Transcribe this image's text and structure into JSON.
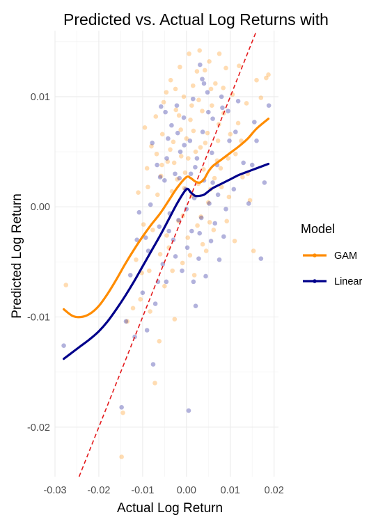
{
  "chart_data": {
    "type": "scatter",
    "title": "Predicted vs. Actual Log Returns with",
    "xlabel": "Actual Log Return",
    "ylabel": "Predicted Log Return",
    "xlim": [
      -0.03,
      0.021
    ],
    "ylim": [
      -0.0245,
      0.016
    ],
    "x_ticks": [
      -0.03,
      -0.02,
      -0.01,
      0.0,
      0.01,
      0.02
    ],
    "x_tick_labels": [
      "-0.03",
      "-0.02",
      "-0.01",
      "0.00",
      "0.01",
      "0.02"
    ],
    "y_ticks": [
      -0.02,
      -0.01,
      0.0,
      0.01
    ],
    "y_tick_labels": [
      "-0.02",
      "-0.01",
      "0.00",
      "0.01"
    ],
    "grid": true,
    "legend": {
      "title": "Model",
      "position": "right"
    },
    "reference_line": {
      "style": "dashed",
      "color": "#e41a1c",
      "slope": 1,
      "intercept": 0
    },
    "series": [
      {
        "name": "GAM",
        "color": "#ff8c00",
        "points": [
          [
            -0.0275,
            -0.0071
          ],
          [
            -0.0148,
            -0.0227
          ],
          [
            -0.0145,
            -0.0187
          ],
          [
            -0.0135,
            -0.0104
          ],
          [
            -0.0122,
            -0.0092
          ],
          [
            -0.0115,
            -0.0048
          ],
          [
            -0.0105,
            -0.0084
          ],
          [
            -0.0098,
            -0.0016
          ],
          [
            -0.0095,
            0.0072
          ],
          [
            -0.009,
            0.0035
          ],
          [
            -0.0085,
            -0.0058
          ],
          [
            -0.008,
            0.0055
          ],
          [
            -0.0077,
            -0.0021
          ],
          [
            -0.007,
            0.0082
          ],
          [
            -0.0066,
            0.0011
          ],
          [
            -0.0062,
            -0.0122
          ],
          [
            -0.0058,
            0.0028
          ],
          [
            -0.0055,
            0.0066
          ],
          [
            -0.005,
            -0.0072
          ],
          [
            -0.0046,
            0.0104
          ],
          [
            -0.0043,
            0.0041
          ],
          [
            -0.004,
            -0.0037
          ],
          [
            -0.0036,
            0.0115
          ],
          [
            -0.0033,
            0.0014
          ],
          [
            -0.003,
            0.0059
          ],
          [
            -0.0027,
            -0.0102
          ],
          [
            -0.0024,
            0.0088
          ],
          [
            -0.0021,
            0.0025
          ],
          [
            -0.0018,
            -0.0013
          ],
          [
            -0.0015,
            0.0127
          ],
          [
            -0.0012,
            0.0046
          ],
          [
            -0.0009,
            -0.0051
          ],
          [
            -0.0006,
            0.01
          ],
          [
            -0.0003,
            0.0031
          ],
          [
            0.0,
            0.0062
          ],
          [
            0.0003,
            -0.0028
          ],
          [
            0.0006,
            0.0139
          ],
          [
            0.0009,
            0.0079
          ],
          [
            0.0012,
            0.001
          ],
          [
            0.0015,
            0.011
          ],
          [
            0.0018,
            -0.0062
          ],
          [
            0.0021,
            0.005
          ],
          [
            0.0024,
            0.0123
          ],
          [
            0.0027,
            0.0021
          ],
          [
            0.003,
            0.0142
          ],
          [
            0.0033,
            -0.0009
          ],
          [
            0.0036,
            0.0087
          ],
          [
            0.0039,
            0.0034
          ],
          [
            0.0042,
            0.0124
          ],
          [
            0.0045,
            -0.004
          ],
          [
            0.0048,
            0.0067
          ],
          [
            0.0052,
            0.0132
          ],
          [
            0.0055,
            0.0016
          ],
          [
            0.0058,
            0.0092
          ],
          [
            0.0062,
            -0.0021
          ],
          [
            0.0066,
            0.0112
          ],
          [
            0.007,
            0.0042
          ],
          [
            0.0075,
            0.0139
          ],
          [
            0.008,
            0.0018
          ],
          [
            0.0085,
            0.0085
          ],
          [
            0.009,
            0.0126
          ],
          [
            0.0097,
            0.0009
          ],
          [
            0.0105,
            0.0102
          ],
          [
            0.0112,
            0.0048
          ],
          [
            0.012,
            0.0128
          ],
          [
            0.0128,
            0.0027
          ],
          [
            0.0137,
            0.0094
          ],
          [
            0.0145,
            0.0006
          ],
          [
            0.0153,
            -0.004
          ],
          [
            0.016,
            0.0115
          ],
          [
            0.017,
            0.0099
          ],
          [
            0.0182,
            0.0117
          ],
          [
            0.0187,
            0.012
          ],
          [
            -0.011,
            0.0013
          ],
          [
            -0.0072,
            -0.016
          ],
          [
            -0.0052,
            0.0095
          ],
          [
            -0.0032,
            -0.0058
          ],
          [
            -0.0013,
            0.007
          ],
          [
            0.0008,
            -0.0044
          ],
          [
            0.0028,
            0.0097
          ],
          [
            0.005,
            0.0004
          ],
          [
            0.0072,
            0.006
          ],
          [
            0.0092,
            -0.0013
          ],
          [
            0.0118,
            0.0076
          ],
          [
            0.014,
            0.003
          ],
          [
            -0.0088,
            0.0018
          ],
          [
            -0.006,
            -0.0043
          ],
          [
            -0.0037,
            0.0052
          ],
          [
            -0.0017,
            0.0083
          ],
          [
            0.0004,
            0.0044
          ],
          [
            0.0025,
            -0.0017
          ],
          [
            0.0043,
            0.0058
          ],
          [
            0.0064,
            0.0026
          ],
          [
            0.0084,
            0.0108
          ],
          [
            0.011,
            -0.0031
          ],
          [
            -0.0102,
            -0.006
          ],
          [
            -0.0068,
            0.0048
          ],
          [
            -0.0045,
            -0.0026
          ],
          [
            -0.0025,
            0.0107
          ],
          [
            -0.0005,
            0.0017
          ],
          [
            0.0016,
            0.0069
          ],
          [
            0.0037,
            -0.0034
          ],
          [
            0.0056,
            0.0107
          ],
          [
            0.0078,
            0.0035
          ],
          [
            0.01,
            0.0066
          ],
          [
            -0.0083,
            -0.0095
          ],
          [
            -0.0056,
            0.0038
          ],
          [
            -0.0028,
            0.004
          ],
          [
            -0.0008,
            -0.0008
          ],
          [
            0.0012,
            0.0092
          ],
          [
            0.0032,
            0.0054
          ],
          [
            0.0053,
            -0.0014
          ],
          [
            0.0074,
            0.0075
          ],
          [
            0.0095,
            0.0044
          ],
          [
            0.0125,
            0.006
          ]
        ]
      },
      {
        "name": "Linear",
        "color": "#00008b",
        "points": [
          [
            -0.028,
            -0.0126
          ],
          [
            -0.0148,
            -0.0182
          ],
          [
            -0.0138,
            -0.0104
          ],
          [
            -0.0128,
            -0.0062
          ],
          [
            -0.0118,
            -0.0118
          ],
          [
            -0.0108,
            -0.0005
          ],
          [
            -0.01,
            -0.0078
          ],
          [
            -0.0093,
            -0.0028
          ],
          [
            -0.0087,
            -0.004
          ],
          [
            -0.0082,
            0.0002
          ],
          [
            -0.0076,
            -0.0143
          ],
          [
            -0.0071,
            -0.0088
          ],
          [
            -0.0067,
            0.0038
          ],
          [
            -0.0062,
            -0.0018
          ],
          [
            -0.0058,
            0.0091
          ],
          [
            -0.0054,
            -0.0052
          ],
          [
            -0.005,
            0.0024
          ],
          [
            -0.0046,
            -0.0068
          ],
          [
            -0.0042,
            0.0062
          ],
          [
            -0.0038,
            -0.0006
          ],
          [
            -0.0034,
            0.0074
          ],
          [
            -0.003,
            -0.003
          ],
          [
            -0.0026,
            0.003
          ],
          [
            -0.0022,
            0.0092
          ],
          [
            -0.0018,
            -0.0012
          ],
          [
            -0.0014,
            0.005
          ],
          [
            -0.001,
            -0.0058
          ],
          [
            -0.0006,
            0.0081
          ],
          [
            -0.0002,
            0.0016
          ],
          [
            0.0002,
            -0.0037
          ],
          [
            0.0005,
            -0.0185
          ],
          [
            0.0008,
            0.006
          ],
          [
            0.0012,
            -0.0022
          ],
          [
            0.0015,
            0.0098
          ],
          [
            0.0018,
            0.0008
          ],
          [
            0.0021,
            -0.009
          ],
          [
            0.0024,
            0.0044
          ],
          [
            0.0028,
            -0.0047
          ],
          [
            0.0031,
            0.0129
          ],
          [
            0.0034,
            -0.001
          ],
          [
            0.0037,
            0.0068
          ],
          [
            0.004,
            0.0024
          ],
          [
            0.0044,
            -0.0063
          ],
          [
            0.0048,
            0.0104
          ],
          [
            0.0052,
            0.0003
          ],
          [
            0.0056,
            -0.0031
          ],
          [
            0.006,
            0.008
          ],
          [
            0.0065,
            -0.0015
          ],
          [
            0.007,
            0.0038
          ],
          [
            0.0075,
            -0.0048
          ],
          [
            0.0082,
            0.009
          ],
          [
            0.009,
            -0.0002
          ],
          [
            0.0098,
            0.006
          ],
          [
            0.0108,
            0.0016
          ],
          [
            0.0118,
            0.0096
          ],
          [
            0.013,
            0.004
          ],
          [
            0.0142,
            0.0003
          ],
          [
            0.0155,
            0.0077
          ],
          [
            0.017,
            -0.0047
          ],
          [
            0.0178,
            0.0022
          ],
          [
            0.0188,
            0.0092
          ],
          [
            -0.009,
            -0.0112
          ],
          [
            -0.006,
            0.0027
          ],
          [
            -0.004,
            -0.0022
          ],
          [
            -0.002,
            0.0067
          ],
          [
            0.0,
            -0.0002
          ],
          [
            0.002,
            0.0036
          ],
          [
            0.004,
            0.0112
          ],
          [
            0.006,
            0.0022
          ],
          [
            0.008,
            0.01
          ],
          [
            -0.0065,
            -0.0068
          ],
          [
            -0.0045,
            0.0044
          ],
          [
            -0.0025,
            -0.0045
          ],
          [
            -0.0005,
            0.0056
          ],
          [
            0.0016,
            -0.0068
          ],
          [
            0.0036,
            0.0116
          ],
          [
            0.0058,
            0.0049
          ],
          [
            0.0085,
            -0.0027
          ],
          [
            0.0112,
            0.0068
          ],
          [
            0.015,
            0.0038
          ],
          [
            -0.0113,
            -0.003
          ],
          [
            -0.0078,
            0.0058
          ],
          [
            -0.0048,
            0.0086
          ],
          [
            -0.0016,
            0.0026
          ],
          [
            0.001,
            0.003
          ],
          [
            0.003,
            -0.0024
          ],
          [
            0.005,
            0.0086
          ],
          [
            0.0072,
            0.0011
          ],
          [
            0.0095,
            0.0087
          ],
          [
            0.016,
            0.006
          ]
        ]
      }
    ],
    "fit_lines": [
      {
        "name": "GAM",
        "color": "#ff8c00",
        "x": [
          -0.028,
          -0.026,
          -0.024,
          -0.022,
          -0.02,
          -0.018,
          -0.016,
          -0.014,
          -0.012,
          -0.01,
          -0.008,
          -0.006,
          -0.004,
          -0.002,
          0.0,
          0.001,
          0.002,
          0.003,
          0.004,
          0.005,
          0.006,
          0.008,
          0.01,
          0.012,
          0.014,
          0.016,
          0.0187
        ],
        "y": [
          -0.0093,
          -0.0099,
          -0.01,
          -0.0097,
          -0.009,
          -0.0079,
          -0.0066,
          -0.0052,
          -0.0039,
          -0.0027,
          -0.0016,
          -0.0006,
          0.0006,
          0.0018,
          0.0027,
          0.0026,
          0.0023,
          0.0022,
          0.0025,
          0.0032,
          0.0037,
          0.0043,
          0.0049,
          0.0055,
          0.0062,
          0.0071,
          0.008
        ]
      },
      {
        "name": "Linear",
        "color": "#00008b",
        "x": [
          -0.028,
          -0.026,
          -0.024,
          -0.022,
          -0.02,
          -0.018,
          -0.016,
          -0.014,
          -0.012,
          -0.01,
          -0.008,
          -0.006,
          -0.004,
          -0.002,
          0.0,
          0.001,
          0.002,
          0.003,
          0.004,
          0.005,
          0.006,
          0.008,
          0.01,
          0.012,
          0.014,
          0.016,
          0.0187
        ],
        "y": [
          -0.0138,
          -0.0132,
          -0.0126,
          -0.012,
          -0.0113,
          -0.0104,
          -0.0093,
          -0.0081,
          -0.0068,
          -0.0054,
          -0.004,
          -0.0026,
          -0.0011,
          0.0004,
          0.0016,
          0.0013,
          0.001,
          0.001,
          0.0011,
          0.0014,
          0.0017,
          0.0021,
          0.0025,
          0.0029,
          0.0032,
          0.0035,
          0.0039
        ]
      }
    ]
  }
}
